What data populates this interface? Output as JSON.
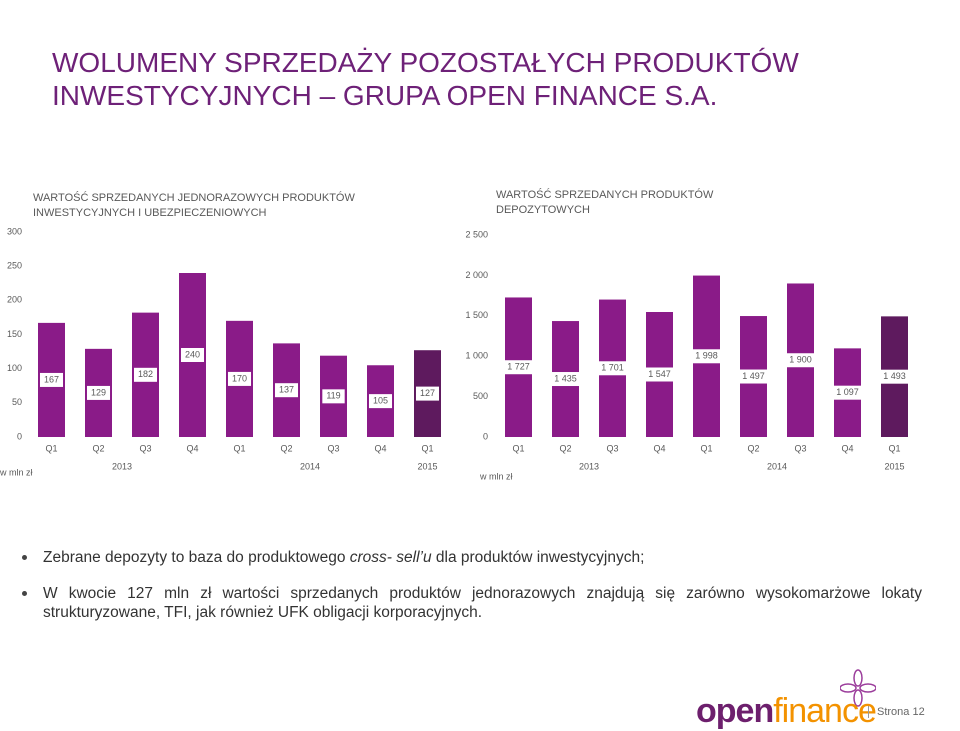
{
  "title": "WOLUMENY SPRZEDAŻY POZOSTAŁYCH PRODUKTÓW INWESTYCYJNYCH – GRUPA OPEN FINANCE S.A.",
  "chart_data": [
    {
      "type": "bar",
      "title": "WARTOŚĆ SPRZEDANYCH JEDNORAZOWYCH PRODUKTÓW INWESTYCYJNYCH I UBEZPIECZENIOWYCH",
      "y_axis_label": "w mln zł",
      "categories": [
        "Q1",
        "Q2",
        "Q3",
        "Q4",
        "Q1",
        "Q2",
        "Q3",
        "Q4",
        "Q1"
      ],
      "x_groups": [
        "2013",
        null,
        null,
        null,
        "2014",
        null,
        null,
        null,
        "2015"
      ],
      "values": [
        167,
        129,
        182,
        240,
        170,
        137,
        119,
        105,
        127
      ],
      "colors": [
        "#8a1b88",
        "#8a1b88",
        "#8a1b88",
        "#8a1b88",
        "#8a1b88",
        "#8a1b88",
        "#8a1b88",
        "#8a1b88",
        "#5e1a5e"
      ],
      "ylim": [
        0,
        300
      ],
      "yticks": [
        0,
        50,
        100,
        150,
        200,
        250,
        300
      ]
    },
    {
      "type": "bar",
      "title": "WARTOŚĆ SPRZEDANYCH PRODUKTÓW DEPOZYTOWYCH",
      "y_axis_label": "w mln zł",
      "categories": [
        "Q1",
        "Q2",
        "Q3",
        "Q4",
        "Q1",
        "Q2",
        "Q3",
        "Q4",
        "Q1"
      ],
      "x_groups": [
        "2013",
        null,
        null,
        null,
        "2014",
        null,
        null,
        null,
        "2015"
      ],
      "values": [
        1727,
        1435,
        1701,
        1547,
        1998,
        1497,
        1900,
        1097,
        1493
      ],
      "value_labels": [
        "1 727",
        "1 435",
        "1 701",
        "1 547",
        "1 998",
        "1 497",
        "1 900",
        "1 097",
        "1 493"
      ],
      "colors": [
        "#8a1b88",
        "#8a1b88",
        "#8a1b88",
        "#8a1b88",
        "#8a1b88",
        "#8a1b88",
        "#8a1b88",
        "#8a1b88",
        "#5e1a5e"
      ],
      "ylim": [
        0,
        2500
      ],
      "yticks": [
        0,
        500,
        {
          "value": 1000,
          "label": "1 000"
        },
        {
          "value": 1500,
          "label": "1 500"
        },
        {
          "value": 2000,
          "label": "2 000"
        },
        {
          "value": 2500,
          "label": "2 500"
        }
      ]
    }
  ],
  "bullets": [
    [
      "Zebrane depozyty to baza do produktowego ",
      "cross- sell’u",
      " dla produktów inwestycyjnych;"
    ],
    [
      "W kwocie 127 mln zł wartości sprzedanych produktów jednorazowych znajdują się zarówno wysokomarżowe lokaty strukturyzowane, TFI, jak również UFK obligacji korporacyjnych."
    ]
  ],
  "footer": {
    "logo_open": "open",
    "logo_finance": "finance",
    "page": "Strona 12"
  }
}
